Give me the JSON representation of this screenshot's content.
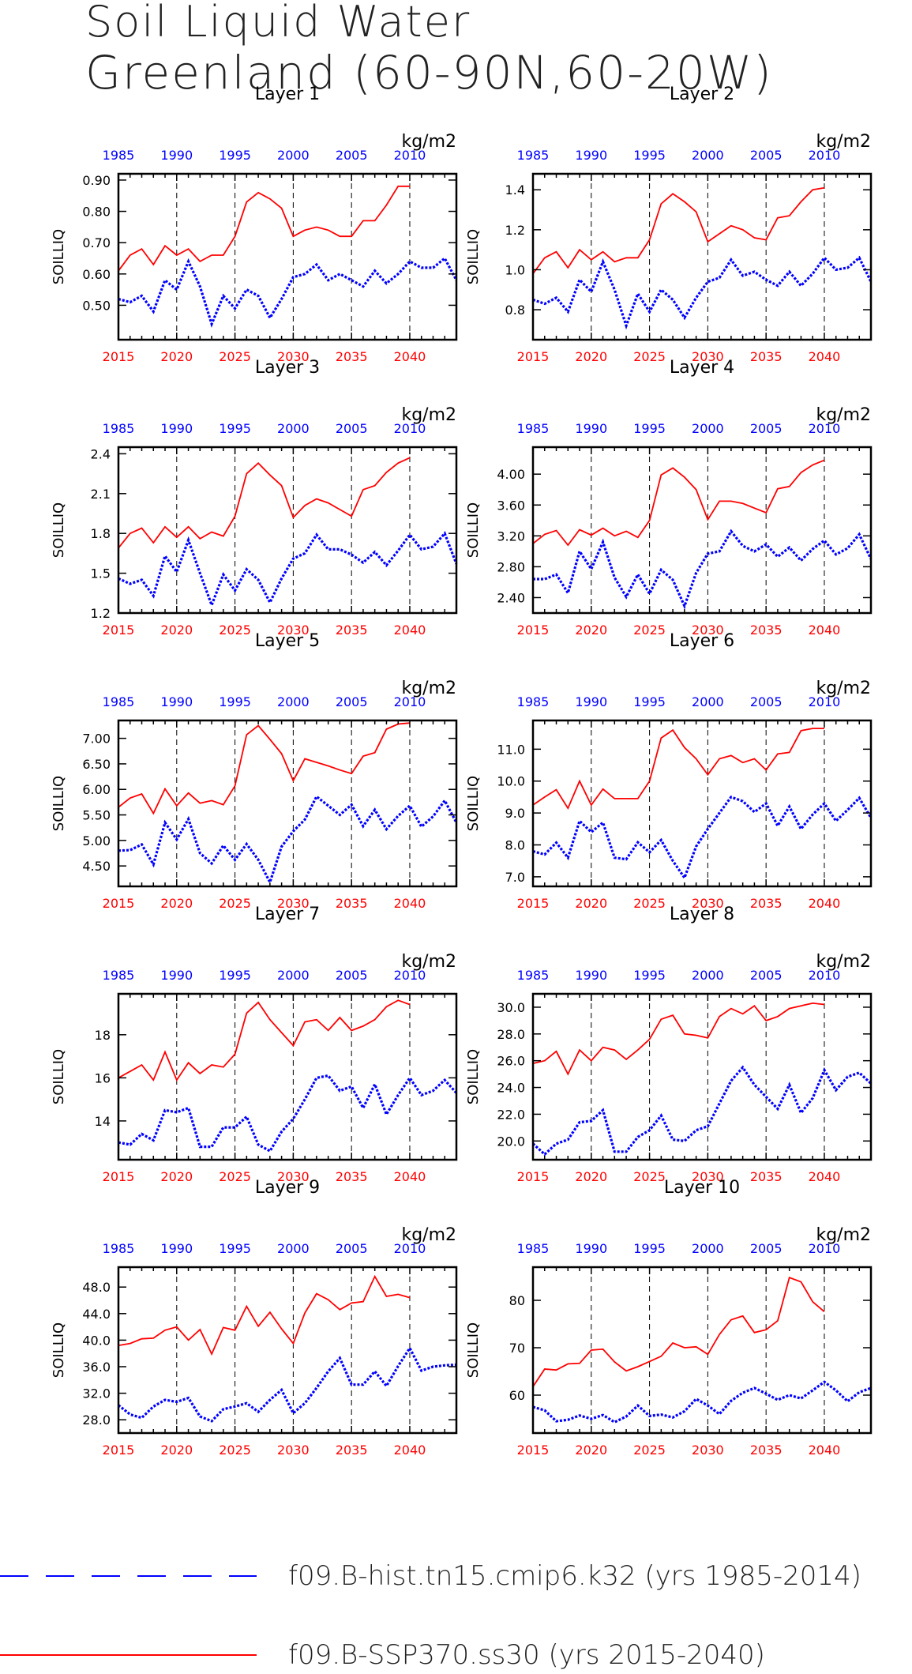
{
  "title_line1": "Soil Liquid Water",
  "title_line2": "Greenland (60-90N,60-20W)",
  "units": "kg/m2",
  "ylabel": "SOILLIQ",
  "top_axis_ticks": [
    "1985",
    "1990",
    "1995",
    "2000",
    "2005",
    "2010"
  ],
  "bottom_axis_ticks": [
    "2015",
    "2020",
    "2025",
    "2030",
    "2035",
    "2040"
  ],
  "legend": {
    "hist": "f09.B-hist.tn15.cmip6.k32 (yrs 1985-2014)",
    "ssp": "f09.B-SSP370.ss30 (yrs 2015-2040)"
  },
  "colors": {
    "hist": "#0000ff",
    "ssp": "#ff0000",
    "top_axis": "#0000ff",
    "bottom_axis": "#ff0000"
  },
  "chart_data": [
    {
      "type": "line",
      "title": "Layer 1",
      "ylim": [
        0.39,
        0.92
      ],
      "yticks": [
        0.5,
        0.6,
        0.7,
        0.8,
        0.9
      ],
      "ytick_labels": [
        "0.50",
        "0.60",
        "0.70",
        "0.80",
        "0.90"
      ],
      "x_top": [
        1985,
        2014
      ],
      "x_bottom": [
        2015,
        2044
      ],
      "series": [
        {
          "name": "f09.B-hist.tn15.cmip6.k32 (yrs 1985-2014)",
          "x_start": 1985,
          "values": [
            0.52,
            0.51,
            0.53,
            0.48,
            0.58,
            0.55,
            0.64,
            0.56,
            0.44,
            0.53,
            0.49,
            0.55,
            0.53,
            0.46,
            0.52,
            0.59,
            0.6,
            0.63,
            0.58,
            0.6,
            0.58,
            0.56,
            0.61,
            0.57,
            0.6,
            0.64,
            0.62,
            0.62,
            0.65,
            0.58
          ]
        },
        {
          "name": "f09.B-SSP370.ss30 (yrs 2015-2040)",
          "x_start": 2015,
          "values": [
            0.61,
            0.66,
            0.68,
            0.63,
            0.69,
            0.66,
            0.68,
            0.64,
            0.66,
            0.66,
            0.72,
            0.83,
            0.86,
            0.84,
            0.81,
            0.72,
            0.74,
            0.75,
            0.74,
            0.72,
            0.72,
            0.77,
            0.77,
            0.82,
            0.88,
            0.88
          ]
        }
      ]
    },
    {
      "type": "line",
      "title": "Layer 2",
      "ylim": [
        0.65,
        1.48
      ],
      "yticks": [
        0.8,
        1.0,
        1.2,
        1.4
      ],
      "ytick_labels": [
        "0.8",
        "1.0",
        "1.2",
        "1.4"
      ],
      "x_top": [
        1985,
        2014
      ],
      "x_bottom": [
        2015,
        2044
      ],
      "series": [
        {
          "name": "f09.B-hist.tn15.cmip6.k32 (yrs 1985-2014)",
          "x_start": 1985,
          "values": [
            0.85,
            0.83,
            0.86,
            0.79,
            0.95,
            0.89,
            1.04,
            0.9,
            0.72,
            0.88,
            0.79,
            0.9,
            0.85,
            0.76,
            0.86,
            0.94,
            0.96,
            1.05,
            0.97,
            0.99,
            0.95,
            0.92,
            0.99,
            0.92,
            0.98,
            1.06,
            1.0,
            1.01,
            1.06,
            0.94
          ]
        },
        {
          "name": "f09.B-SSP370.ss30 (yrs 2015-2040)",
          "x_start": 2015,
          "values": [
            0.98,
            1.06,
            1.09,
            1.01,
            1.1,
            1.05,
            1.09,
            1.04,
            1.06,
            1.06,
            1.15,
            1.33,
            1.38,
            1.34,
            1.29,
            1.14,
            1.18,
            1.22,
            1.2,
            1.16,
            1.15,
            1.26,
            1.27,
            1.34,
            1.4,
            1.41
          ]
        }
      ]
    },
    {
      "type": "line",
      "title": "Layer 3",
      "ylim": [
        1.2,
        2.45
      ],
      "yticks": [
        1.2,
        1.5,
        1.8,
        2.1,
        2.4
      ],
      "ytick_labels": [
        "1.2",
        "1.5",
        "1.8",
        "2.1",
        "2.4"
      ],
      "x_top": [
        1985,
        2014
      ],
      "x_bottom": [
        2015,
        2044
      ],
      "series": [
        {
          "name": "f09.B-hist.tn15.cmip6.k32 (yrs 1985-2014)",
          "x_start": 1985,
          "values": [
            1.46,
            1.42,
            1.45,
            1.33,
            1.63,
            1.51,
            1.75,
            1.5,
            1.26,
            1.49,
            1.37,
            1.53,
            1.45,
            1.28,
            1.46,
            1.61,
            1.65,
            1.79,
            1.68,
            1.68,
            1.64,
            1.58,
            1.66,
            1.56,
            1.67,
            1.79,
            1.68,
            1.7,
            1.8,
            1.57
          ]
        },
        {
          "name": "f09.B-SSP370.ss30 (yrs 2015-2040)",
          "x_start": 2015,
          "values": [
            1.69,
            1.8,
            1.84,
            1.73,
            1.85,
            1.77,
            1.85,
            1.76,
            1.81,
            1.78,
            1.93,
            2.25,
            2.33,
            2.24,
            2.16,
            1.92,
            2.01,
            2.06,
            2.03,
            1.98,
            1.93,
            2.13,
            2.16,
            2.26,
            2.33,
            2.37
          ]
        }
      ]
    },
    {
      "type": "line",
      "title": "Layer 4",
      "ylim": [
        2.2,
        4.35
      ],
      "yticks": [
        2.4,
        2.8,
        3.2,
        3.6,
        4.0
      ],
      "ytick_labels": [
        "2.40",
        "2.80",
        "3.20",
        "3.60",
        "4.00"
      ],
      "x_top": [
        1985,
        2014
      ],
      "x_bottom": [
        2015,
        2044
      ],
      "series": [
        {
          "name": "f09.B-hist.tn15.cmip6.k32 (yrs 1985-2014)",
          "x_start": 1985,
          "values": [
            2.64,
            2.64,
            2.7,
            2.46,
            3.0,
            2.77,
            3.12,
            2.66,
            2.41,
            2.7,
            2.45,
            2.76,
            2.63,
            2.29,
            2.72,
            2.97,
            3.0,
            3.26,
            3.07,
            3.0,
            3.09,
            2.93,
            3.05,
            2.88,
            3.03,
            3.14,
            2.96,
            3.04,
            3.22,
            2.9
          ]
        },
        {
          "name": "f09.B-SSP370.ss30 (yrs 2015-2040)",
          "x_start": 2015,
          "values": [
            3.1,
            3.22,
            3.27,
            3.08,
            3.28,
            3.21,
            3.3,
            3.2,
            3.26,
            3.18,
            3.4,
            3.99,
            4.08,
            3.96,
            3.8,
            3.41,
            3.65,
            3.65,
            3.62,
            3.56,
            3.5,
            3.81,
            3.84,
            4.02,
            4.12,
            4.18
          ]
        }
      ]
    },
    {
      "type": "line",
      "title": "Layer 5",
      "ylim": [
        4.1,
        7.35
      ],
      "yticks": [
        4.5,
        5.0,
        5.5,
        6.0,
        6.5,
        7.0
      ],
      "ytick_labels": [
        "4.50",
        "5.00",
        "5.50",
        "6.00",
        "6.50",
        "7.00"
      ],
      "x_top": [
        1985,
        2014
      ],
      "x_bottom": [
        2015,
        2044
      ],
      "series": [
        {
          "name": "f09.B-hist.tn15.cmip6.k32 (yrs 1985-2014)",
          "x_start": 1985,
          "values": [
            4.8,
            4.81,
            4.92,
            4.53,
            5.35,
            5.02,
            5.42,
            4.75,
            4.55,
            4.9,
            4.62,
            4.93,
            4.62,
            4.18,
            4.88,
            5.18,
            5.41,
            5.86,
            5.68,
            5.5,
            5.7,
            5.28,
            5.6,
            5.22,
            5.48,
            5.68,
            5.27,
            5.47,
            5.78,
            5.35
          ]
        },
        {
          "name": "f09.B-SSP370.ss30 (yrs 2015-2040)",
          "x_start": 2015,
          "values": [
            5.65,
            5.83,
            5.91,
            5.53,
            6.01,
            5.68,
            5.93,
            5.73,
            5.78,
            5.7,
            6.07,
            7.07,
            7.25,
            6.98,
            6.7,
            6.17,
            6.6,
            6.53,
            6.46,
            6.38,
            6.31,
            6.65,
            6.72,
            7.18,
            7.28,
            7.3
          ]
        }
      ]
    },
    {
      "type": "line",
      "title": "Layer 6",
      "ylim": [
        6.7,
        11.9
      ],
      "yticks": [
        7.0,
        8.0,
        9.0,
        10.0,
        11.0
      ],
      "ytick_labels": [
        "7.0",
        "8.0",
        "9.0",
        "10.0",
        "11.0"
      ],
      "x_top": [
        1985,
        2014
      ],
      "x_bottom": [
        2015,
        2044
      ],
      "series": [
        {
          "name": "f09.B-hist.tn15.cmip6.k32 (yrs 1985-2014)",
          "x_start": 1985,
          "values": [
            7.8,
            7.7,
            8.07,
            7.6,
            8.75,
            8.4,
            8.7,
            7.6,
            7.55,
            8.08,
            7.77,
            8.15,
            7.5,
            6.97,
            7.95,
            8.5,
            9.0,
            9.5,
            9.37,
            9.03,
            9.3,
            8.6,
            9.2,
            8.5,
            8.95,
            9.3,
            8.75,
            9.1,
            9.47,
            8.85
          ]
        },
        {
          "name": "f09.B-SSP370.ss30 (yrs 2015-2040)",
          "x_start": 2015,
          "values": [
            9.25,
            9.5,
            9.73,
            9.15,
            10.0,
            9.25,
            9.75,
            9.45,
            9.45,
            9.45,
            10.0,
            11.35,
            11.6,
            11.05,
            10.7,
            10.2,
            10.7,
            10.8,
            10.58,
            10.7,
            10.35,
            10.85,
            10.9,
            11.58,
            11.65,
            11.65
          ]
        }
      ]
    },
    {
      "type": "line",
      "title": "Layer 7",
      "ylim": [
        12.2,
        19.9
      ],
      "yticks": [
        14,
        16,
        18
      ],
      "ytick_labels": [
        "14",
        "16",
        "18"
      ],
      "x_top": [
        1985,
        2014
      ],
      "x_bottom": [
        2015,
        2044
      ],
      "series": [
        {
          "name": "f09.B-hist.tn15.cmip6.k32 (yrs 1985-2014)",
          "x_start": 1985,
          "values": [
            13.0,
            12.9,
            13.4,
            13.1,
            14.5,
            14.4,
            14.6,
            12.8,
            12.8,
            13.7,
            13.7,
            14.2,
            12.9,
            12.6,
            13.5,
            14.1,
            15.0,
            16.0,
            16.1,
            15.4,
            15.6,
            14.6,
            15.7,
            14.3,
            15.2,
            16.0,
            15.2,
            15.4,
            15.9,
            15.3
          ]
        },
        {
          "name": "f09.B-SSP370.ss30 (yrs 2015-2040)",
          "x_start": 2015,
          "values": [
            16.0,
            16.3,
            16.6,
            15.9,
            17.2,
            15.9,
            16.7,
            16.2,
            16.6,
            16.5,
            17.1,
            19.0,
            19.5,
            18.7,
            18.1,
            17.5,
            18.6,
            18.7,
            18.2,
            18.8,
            18.2,
            18.4,
            18.7,
            19.3,
            19.6,
            19.4
          ]
        }
      ]
    },
    {
      "type": "line",
      "title": "Layer 8",
      "ylim": [
        18.6,
        31.0
      ],
      "yticks": [
        20,
        22,
        24,
        26,
        28,
        30
      ],
      "ytick_labels": [
        "20.0",
        "22.0",
        "24.0",
        "26.0",
        "28.0",
        "30.0"
      ],
      "x_top": [
        1985,
        2014
      ],
      "x_bottom": [
        2015,
        2044
      ],
      "series": [
        {
          "name": "f09.B-hist.tn15.cmip6.k32 (yrs 1985-2014)",
          "x_start": 1985,
          "values": [
            19.8,
            19.0,
            19.8,
            20.1,
            21.4,
            21.5,
            22.3,
            19.2,
            19.2,
            20.3,
            20.8,
            21.9,
            20.1,
            20.0,
            20.8,
            21.1,
            22.8,
            24.5,
            25.5,
            24.2,
            23.3,
            22.4,
            24.2,
            22.1,
            23.2,
            25.3,
            23.8,
            24.8,
            25.1,
            24.3
          ]
        },
        {
          "name": "f09.B-SSP370.ss30 (yrs 2015-2040)",
          "x_start": 2015,
          "values": [
            25.8,
            26.0,
            26.7,
            25.0,
            26.8,
            26.0,
            27.0,
            26.8,
            26.1,
            26.8,
            27.6,
            29.1,
            29.4,
            28.0,
            27.9,
            27.7,
            29.3,
            29.9,
            29.5,
            30.1,
            29.0,
            29.3,
            29.9,
            30.1,
            30.3,
            30.2
          ]
        }
      ]
    },
    {
      "type": "line",
      "title": "Layer 9",
      "ylim": [
        26.0,
        51.0
      ],
      "yticks": [
        28,
        32,
        36,
        40,
        44,
        48
      ],
      "ytick_labels": [
        "28.0",
        "32.0",
        "36.0",
        "40.0",
        "44.0",
        "48.0"
      ],
      "x_top": [
        1985,
        2014
      ],
      "x_bottom": [
        2015,
        2044
      ],
      "series": [
        {
          "name": "f09.B-hist.tn15.cmip6.k32 (yrs 1985-2014)",
          "x_start": 1985,
          "values": [
            30.2,
            28.8,
            28.3,
            30.0,
            31.0,
            30.7,
            31.3,
            28.5,
            27.8,
            29.6,
            30.0,
            30.5,
            29.2,
            31.0,
            32.5,
            29.0,
            30.5,
            32.8,
            35.3,
            37.3,
            33.3,
            33.3,
            35.3,
            33.1,
            36.1,
            38.8,
            35.4,
            36.0,
            36.2,
            36.3
          ]
        },
        {
          "name": "f09.B-SSP370.ss30 (yrs 2015-2040)",
          "x_start": 2015,
          "values": [
            39.2,
            39.5,
            40.2,
            40.3,
            41.5,
            42.0,
            40.0,
            41.6,
            37.9,
            41.9,
            41.5,
            45.1,
            42.1,
            44.2,
            41.7,
            39.5,
            44.1,
            47.0,
            46.1,
            44.6,
            45.6,
            45.8,
            49.6,
            46.6,
            46.9,
            46.4
          ]
        }
      ]
    },
    {
      "type": "line",
      "title": "Layer 10",
      "ylim": [
        52.0,
        87.0
      ],
      "yticks": [
        60,
        70,
        80
      ],
      "ytick_labels": [
        "60",
        "70",
        "80"
      ],
      "x_top": [
        1985,
        2014
      ],
      "x_bottom": [
        2015,
        2044
      ],
      "series": [
        {
          "name": "f09.B-hist.tn15.cmip6.k32 (yrs 1985-2014)",
          "x_start": 1985,
          "values": [
            57.5,
            56.8,
            54.5,
            54.8,
            55.7,
            55.0,
            55.8,
            54.3,
            55.5,
            57.8,
            55.6,
            55.9,
            55.3,
            56.6,
            59.2,
            57.8,
            56.0,
            58.8,
            60.5,
            61.5,
            60.3,
            59.0,
            60.0,
            59.3,
            61.0,
            62.8,
            61.0,
            58.7,
            60.6,
            61.5
          ]
        },
        {
          "name": "f09.B-SSP370.ss30 (yrs 2015-2040)",
          "x_start": 2015,
          "values": [
            61.8,
            65.5,
            65.3,
            66.6,
            66.7,
            69.5,
            69.7,
            67.0,
            65.1,
            66.0,
            67.1,
            68.2,
            71.0,
            70.0,
            70.2,
            68.6,
            72.8,
            75.9,
            76.7,
            73.2,
            73.8,
            75.7,
            84.8,
            83.9,
            79.7,
            77.6
          ]
        }
      ]
    }
  ]
}
